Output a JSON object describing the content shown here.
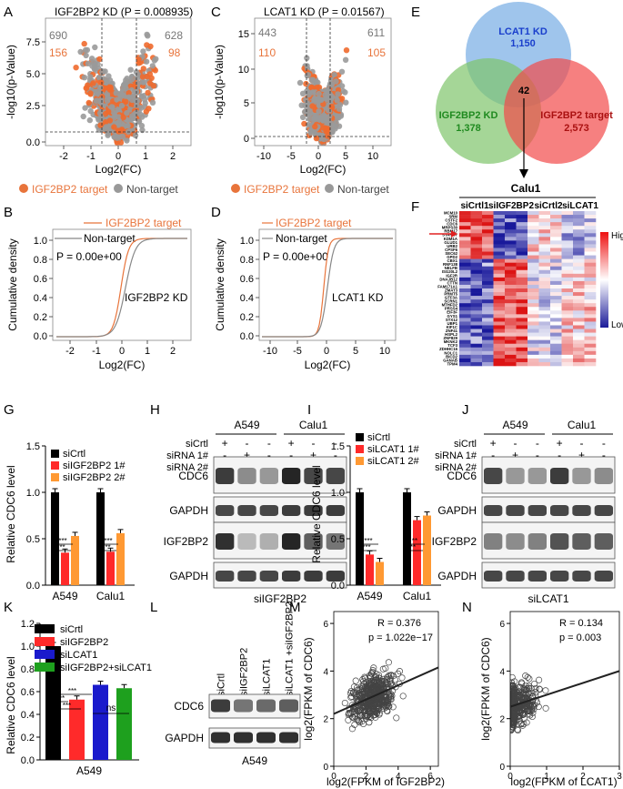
{
  "panels": {
    "A": {
      "letter": "A",
      "title": "IGF2BP2 KD (P = 0.008935)",
      "ul": "690",
      "ur": "628",
      "ll": "156",
      "lr": "98",
      "xlabel": "Log2(FC)",
      "ylabel": "-log10(p-Value)",
      "xticks": [
        "-2",
        "-1",
        "0",
        "1",
        "2"
      ],
      "yticks": [
        "0.0",
        "2.5",
        "5.0",
        "7.5"
      ]
    },
    "B": {
      "letter": "B",
      "legend1": "IGF2BP2 target",
      "legend2": "Non-target",
      "pval": "P = 0.00e+00",
      "annot": "IGF2BP2 KD",
      "xlabel": "Log2(FC)",
      "ylabel": "Cumulative density",
      "xticks": [
        "-2",
        "-1",
        "0",
        "1",
        "2"
      ],
      "yticks": [
        "0.0",
        "0.2",
        "0.4",
        "0.6",
        "0.8",
        "1.0"
      ]
    },
    "C": {
      "letter": "C",
      "title": "LCAT1 KD (P = 0.01567)",
      "ul": "443",
      "ur": "611",
      "ll": "110",
      "lr": "105",
      "xlabel": "Log2(FC)",
      "ylabel": "-log10(p-Value)",
      "xticks": [
        "-10",
        "-5",
        "0",
        "5",
        "10"
      ],
      "yticks": [
        "0",
        "5",
        "10",
        "15"
      ]
    },
    "D": {
      "letter": "D",
      "legend1": "IGF2BP2 target",
      "legend2": "Non-target",
      "pval": "P = 0.00e+00",
      "annot": "LCAT1 KD",
      "xlabel": "Log2(FC)",
      "ylabel": "Cumulative density",
      "xticks": [
        "-10",
        "-5",
        "0",
        "5",
        "10"
      ],
      "yticks": [
        "0.0",
        "0.2",
        "0.4",
        "0.6",
        "0.8",
        "1.0"
      ]
    },
    "ABlegend": {
      "target": "IGF2BP2 target",
      "nontarget": "Non-target"
    },
    "E": {
      "letter": "E",
      "c1": "LCAT1 KD",
      "c1n": "1,150",
      "c2": "IGF2BP2  KD",
      "c2n": "1,378",
      "c3": "IGF2BP2 target",
      "c3n": "2,573",
      "center": "42"
    },
    "F": {
      "letter": "F",
      "cell": "Calu1",
      "groups": [
        "siCrtl1",
        "siIGF2BP2",
        "siCrtl2",
        "siLCAT1"
      ],
      "high": "High",
      "low": "Low",
      "genes": [
        "MCM10",
        "SRM",
        "CSTF2",
        "CDC6",
        "MRPS30",
        "RBM17",
        "STARD7",
        "KDM1A",
        "GLUD1",
        "URB2",
        "CPSF6",
        "SEC62",
        "GPD2",
        "CBX1",
        "RNF138",
        "NELFB",
        "ISG20L2",
        "IGF2R",
        "DNAJB12",
        "CTTN",
        "FAM171A1",
        "ZMAT3",
        "PRMT5",
        "GTF3A",
        "SCRN1",
        "MTHFD2",
        "PRSS4",
        "EIF3F",
        "GYS1",
        "STX12",
        "UBP1",
        "KIF1C",
        "ZNF41",
        "HSPL2",
        "ZNF829",
        "MKNK2",
        "TCF3",
        "ZDHHC16",
        "NOLC1",
        "BICD2",
        "GANAB",
        "TPM4"
      ]
    },
    "G": {
      "letter": "G",
      "legend": [
        "siCrtl",
        "siIGF2BP2 1#",
        "siIGF2BP2 2#"
      ],
      "groups": [
        "A549",
        "Calu1"
      ],
      "ylabel": "Relative CDC6 level",
      "yticks": [
        "0.0",
        "0.5",
        "1.0",
        "1.5"
      ],
      "sig": "***"
    },
    "H": {
      "letter": "H",
      "cells": [
        "A549",
        "Calu1"
      ],
      "rows": [
        "siCrtl",
        "siRNA 1#",
        "siRNA 2#"
      ],
      "signs": [
        [
          "+",
          "-",
          "-",
          "+",
          "-",
          "-"
        ],
        [
          "-",
          "+",
          "-",
          "-",
          "+",
          "-"
        ],
        [
          "-",
          "-",
          "+",
          "-",
          "-",
          "+"
        ]
      ],
      "bands": [
        "CDC6",
        "GAPDH",
        "IGF2BP2",
        "GAPDH"
      ],
      "footer": "siIGF2BP2"
    },
    "I": {
      "letter": "I",
      "legend": [
        "siCrtl",
        "siLCAT1 1#",
        "siLCAT1 2#"
      ],
      "groups": [
        "A549",
        "Calu1"
      ],
      "ylabel": "Relative CDC6 level",
      "yticks": [
        "0.0",
        "0.5",
        "1.0",
        "1.5"
      ],
      "sig": "***",
      "sig2": "**"
    },
    "J": {
      "letter": "J",
      "cells": [
        "A549",
        "Calu1"
      ],
      "rows": [
        "siCrtl",
        "siRNA 1#",
        "siRNA 2#"
      ],
      "signs": [
        [
          "+",
          "-",
          "-",
          "+",
          "-",
          "-"
        ],
        [
          "-",
          "+",
          "-",
          "-",
          "+",
          "-"
        ],
        [
          "-",
          "-",
          "+",
          "-",
          "-",
          "+"
        ]
      ],
      "bands": [
        "CDC6",
        "GAPDH",
        "IGF2BP2",
        "GAPDH"
      ],
      "footer": "siLCAT1"
    },
    "K": {
      "letter": "K",
      "legend": [
        "siCrtl",
        "siIGF2BP2",
        "siLCAT1",
        "siIGF2BP2+siLCAT1"
      ],
      "group": "A549",
      "ylabel": "Relative CDC6 level",
      "yticks": [
        "0.0",
        "0.2",
        "0.4",
        "0.6",
        "0.8",
        "1.0",
        "1.2"
      ],
      "sig": "***",
      "ns": "ns"
    },
    "L": {
      "letter": "L",
      "lanes": [
        "siCrtl",
        "siIGF2BP2",
        "siLCAT1",
        "siLCAT1 +siIGF2BP2"
      ],
      "bands": [
        "CDC6",
        "GAPDH"
      ],
      "footer": "A549"
    },
    "M": {
      "letter": "M",
      "r": "R = 0.376",
      "p": "p = 1.022e−17",
      "xlabel": "log2(FPKM of IGF2BP2)",
      "ylabel": "log2(FPKM of CDC6)",
      "xticks": [
        "0",
        "2",
        "4",
        "6"
      ],
      "yticks": [
        "0",
        "2",
        "4",
        "6"
      ]
    },
    "N": {
      "letter": "N",
      "r": "R = 0.134",
      "p": "p = 0.003",
      "xlabel": "log2(FPKM of LCAT1)",
      "ylabel": "log2(FPKM of CDC6)",
      "xticks": [
        "0",
        "1",
        "2",
        "3"
      ],
      "yticks": [
        "0",
        "2",
        "4",
        "6"
      ]
    }
  },
  "chart_data": [
    {
      "id": "G",
      "type": "bar",
      "categories": [
        "A549",
        "Calu1"
      ],
      "series": [
        {
          "name": "siCrtl",
          "values": [
            1.0,
            1.0
          ]
        },
        {
          "name": "siIGF2BP2 1#",
          "values": [
            0.35,
            0.36
          ]
        },
        {
          "name": "siIGF2BP2 2#",
          "values": [
            0.53,
            0.56
          ]
        }
      ],
      "ylim": [
        0,
        1.5
      ]
    },
    {
      "id": "I",
      "type": "bar",
      "categories": [
        "A549",
        "Calu1"
      ],
      "series": [
        {
          "name": "siCrtl",
          "values": [
            1.0,
            1.0
          ]
        },
        {
          "name": "siLCAT1 1#",
          "values": [
            0.33,
            0.7
          ]
        },
        {
          "name": "siLCAT1 2#",
          "values": [
            0.25,
            0.75
          ]
        }
      ],
      "ylim": [
        0,
        1.5
      ]
    },
    {
      "id": "K",
      "type": "bar",
      "categories": [
        "siCrtl",
        "siIGF2BP2",
        "siLCAT1",
        "siIGF2BP2+siLCAT1"
      ],
      "values": [
        1.0,
        0.53,
        0.66,
        0.63
      ],
      "colors": [
        "#000000",
        "#ff2a2a",
        "#1a1acc",
        "#1ea01e"
      ],
      "ylim": [
        0,
        1.2
      ]
    },
    {
      "id": "M",
      "type": "scatter",
      "fit": {
        "slope": 0.3,
        "intercept": 2.2
      },
      "xlim": [
        0,
        6.5
      ],
      "ylim": [
        0,
        6.5
      ]
    },
    {
      "id": "N",
      "type": "scatter",
      "fit": {
        "slope": 0.5,
        "intercept": 2.5
      },
      "xlim": [
        0,
        3
      ],
      "ylim": [
        0,
        6.5
      ]
    }
  ]
}
